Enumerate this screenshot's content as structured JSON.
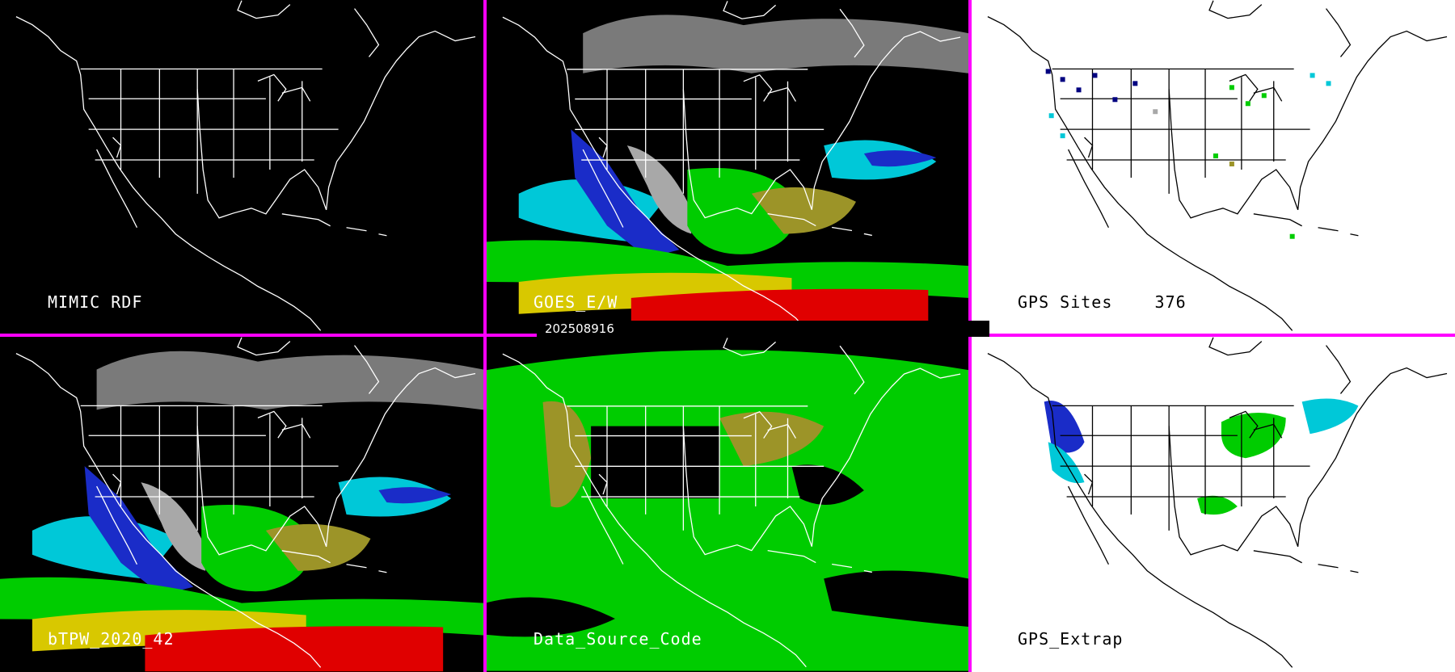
{
  "panels": {
    "top_left": {
      "label": "MIMIC RDF",
      "background": "#000000"
    },
    "top_middle": {
      "label": "GOES_E/W",
      "background": "#000000"
    },
    "top_right": {
      "label": "GPS Sites    376",
      "background": "#ffffff"
    },
    "bottom_left": {
      "label": "bTPW_2020_42",
      "background": "#000000"
    },
    "bottom_middle": {
      "label": "Data_Source_Code",
      "background": "#000000"
    },
    "bottom_right": {
      "label": "GPS_Extrap",
      "background": "#ffffff"
    }
  },
  "timestamp": "202508916",
  "colors": {
    "divider": "#ff00ff",
    "water_vapor_scale": [
      "#000080",
      "#1a2cc8",
      "#00c8d8",
      "#00cc00",
      "#9c9428",
      "#d8c800",
      "#e00000",
      "#a8a8a8"
    ]
  }
}
